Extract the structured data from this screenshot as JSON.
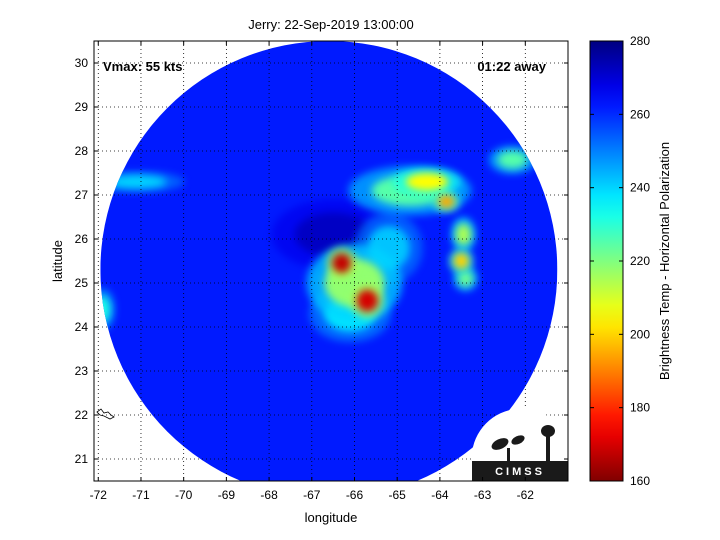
{
  "chart_data": {
    "type": "heatmap",
    "title": "Jerry: 22-Sep-2019 13:00:00",
    "xlabel": "longitude",
    "ylabel": "latitude",
    "xlim": [
      -72.1,
      -61
    ],
    "ylim": [
      20.5,
      30.5
    ],
    "x_ticks": [
      -72,
      -71,
      -70,
      -69,
      -68,
      -67,
      -66,
      -65,
      -64,
      -63,
      -62
    ],
    "y_ticks": [
      21,
      22,
      23,
      24,
      25,
      26,
      27,
      28,
      29,
      30
    ],
    "grid": "dotted",
    "annotations": {
      "vmax": "Vmax: 55 kts",
      "time_away": "01:22 away"
    },
    "colorbar": {
      "label": "Brightness Temp - Horizontal Polarization",
      "range": [
        160,
        280
      ],
      "ticks": [
        160,
        180,
        200,
        220,
        240,
        260,
        280
      ],
      "colormap": "jet-reversed"
    },
    "swath": {
      "center_lon": -66.6,
      "center_lat": 25.3,
      "radius_lon": 5.35,
      "radius_lat": 5.2
    },
    "background_temp": 262,
    "features": [
      {
        "lon": -66.3,
        "lat": 25.45,
        "temp": 168,
        "slon": 0.22,
        "slat": 0.22
      },
      {
        "lon": -65.7,
        "lat": 24.6,
        "temp": 170,
        "slon": 0.25,
        "slat": 0.25
      },
      {
        "lon": -66.0,
        "lat": 25.0,
        "temp": 218,
        "slon": 0.7,
        "slat": 0.55
      },
      {
        "lon": -66.1,
        "lat": 24.3,
        "temp": 238,
        "slon": 0.6,
        "slat": 0.4
      },
      {
        "lon": -64.3,
        "lat": 27.3,
        "temp": 205,
        "slon": 0.5,
        "slat": 0.2
      },
      {
        "lon": -64.7,
        "lat": 27.1,
        "temp": 225,
        "slon": 0.9,
        "slat": 0.35
      },
      {
        "lon": -63.85,
        "lat": 26.85,
        "temp": 195,
        "slon": 0.2,
        "slat": 0.15
      },
      {
        "lon": -63.5,
        "lat": 25.5,
        "temp": 200,
        "slon": 0.18,
        "slat": 0.18
      },
      {
        "lon": -63.45,
        "lat": 26.1,
        "temp": 215,
        "slon": 0.18,
        "slat": 0.25
      },
      {
        "lon": -63.4,
        "lat": 25.1,
        "temp": 222,
        "slon": 0.18,
        "slat": 0.18
      },
      {
        "lon": -62.3,
        "lat": 27.8,
        "temp": 225,
        "slon": 0.35,
        "slat": 0.2
      },
      {
        "lon": -71.1,
        "lat": 27.3,
        "temp": 240,
        "slon": 0.7,
        "slat": 0.15
      },
      {
        "lon": -71.9,
        "lat": 24.4,
        "temp": 232,
        "slon": 0.18,
        "slat": 0.3
      },
      {
        "lon": -65.2,
        "lat": 25.8,
        "temp": 242,
        "slon": 0.5,
        "slat": 0.5
      },
      {
        "lon": -66.5,
        "lat": 26.1,
        "temp": 272,
        "slon": 0.9,
        "slat": 0.5
      }
    ]
  }
}
